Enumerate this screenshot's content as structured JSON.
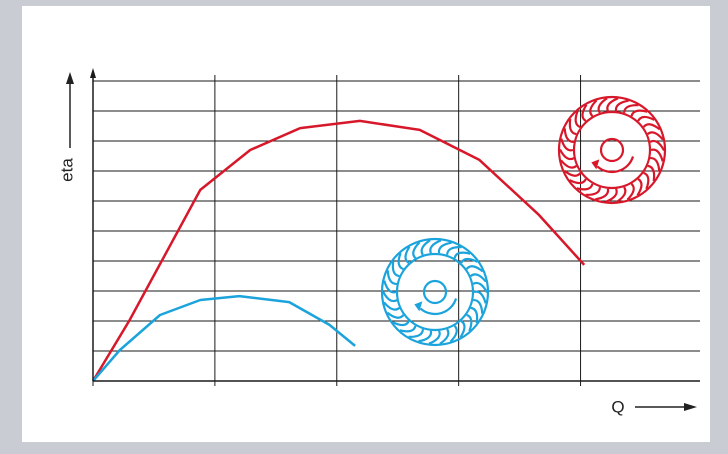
{
  "chart_data": {
    "type": "line",
    "xlabel": "Q",
    "ylabel": "eta",
    "xlim": [
      0,
      4.98
    ],
    "ylim": [
      0,
      10
    ],
    "xticks": [
      0,
      1,
      2,
      3,
      4
    ],
    "yticks": [
      0,
      1,
      2,
      3,
      4,
      5,
      6,
      7,
      8,
      9,
      10
    ],
    "grid": true,
    "series": [
      {
        "color": "#d7182a",
        "x": [
          0,
          0.3,
          0.88,
          1.29,
          1.7,
          2.19,
          2.68,
          3.17,
          3.66,
          4.03
        ],
        "values": [
          0,
          2.03,
          6.37,
          7.7,
          8.43,
          8.67,
          8.37,
          7.37,
          5.53,
          3.87
        ]
      },
      {
        "color": "#1ba3dc",
        "x": [
          0,
          0.22,
          0.55,
          0.88,
          1.2,
          1.61,
          1.94,
          2.15
        ],
        "values": [
          0,
          1.03,
          2.2,
          2.7,
          2.83,
          2.63,
          1.87,
          1.17
        ]
      }
    ]
  }
}
